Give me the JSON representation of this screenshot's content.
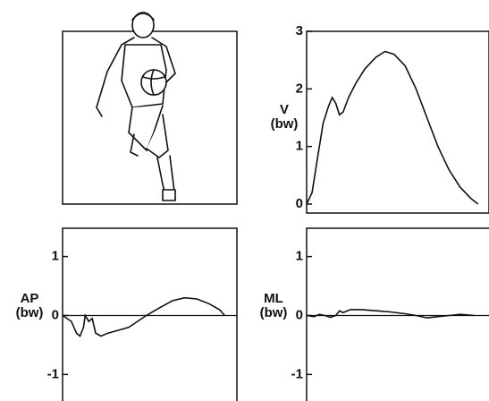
{
  "chart_data": [
    {
      "type": "line",
      "ylabel": [
        "V",
        "(bw)"
      ],
      "ylim": [
        0,
        3
      ],
      "yticks": [
        0,
        1,
        2,
        3
      ],
      "xlim": [
        0,
        100
      ],
      "color": "#111111",
      "x": [
        0,
        3,
        6,
        9,
        12,
        14,
        16,
        18,
        20,
        23,
        27,
        32,
        38,
        43,
        48,
        54,
        60,
        66,
        72,
        78,
        84,
        90,
        94
      ],
      "values": [
        0,
        0.2,
        0.8,
        1.4,
        1.7,
        1.85,
        1.75,
        1.55,
        1.6,
        1.85,
        2.1,
        2.35,
        2.55,
        2.65,
        2.6,
        2.4,
        2.0,
        1.5,
        1.0,
        0.6,
        0.3,
        0.1,
        0
      ]
    },
    {
      "type": "line",
      "ylabel": [
        "AP",
        "(bw)"
      ],
      "ylim": [
        -1.45,
        1.48
      ],
      "yticks": [
        -1,
        0,
        1
      ],
      "xlim": [
        0,
        100
      ],
      "color": "#111111",
      "x": [
        0,
        5,
        8,
        10,
        12,
        13,
        15,
        17,
        19,
        22,
        26,
        32,
        38,
        43,
        48,
        55,
        63,
        70,
        77,
        84,
        90,
        93
      ],
      "values": [
        0,
        -0.1,
        -0.3,
        -0.35,
        -0.2,
        0,
        -0.1,
        -0.05,
        -0.3,
        -0.35,
        -0.3,
        -0.25,
        -0.2,
        -0.1,
        0,
        0.12,
        0.25,
        0.3,
        0.28,
        0.2,
        0.1,
        0
      ]
    },
    {
      "type": "line",
      "ylabel": [
        "ML",
        "(bw)"
      ],
      "ylim": [
        -1.45,
        1.48
      ],
      "yticks": [
        -1,
        0,
        1
      ],
      "xlim": [
        0,
        100
      ],
      "color": "#111111",
      "x": [
        0,
        4,
        7,
        10,
        13,
        16,
        18,
        20,
        24,
        30,
        38,
        46,
        54,
        60,
        66,
        72,
        78,
        84,
        88,
        92
      ],
      "values": [
        0,
        -0.02,
        0.02,
        0,
        -0.03,
        0,
        0.08,
        0.05,
        0.1,
        0.1,
        0.08,
        0.06,
        0.03,
        0,
        -0.04,
        -0.02,
        0,
        0.02,
        0.01,
        0
      ]
    }
  ]
}
